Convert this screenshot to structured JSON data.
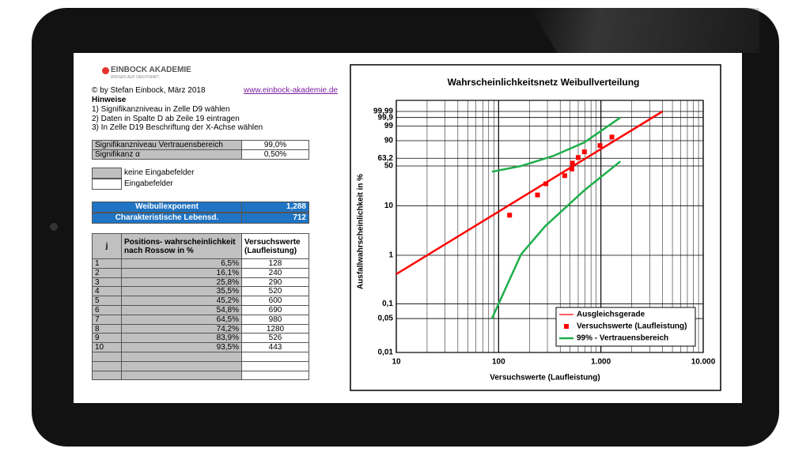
{
  "logo": {
    "name": "EINBOCK AKADEMIE",
    "tagline": "WISSEN AUF DEN PUNKT."
  },
  "author": "© by Stefan Einbock, März 2018",
  "link": "www.einbock-akademie.de",
  "notes": {
    "title": "Hinweise",
    "items": [
      "1) Signifikanzniveau in Zelle D9 wählen",
      "2) Daten in Spalte D ab Zeile 19 eintragen",
      "3) In Zelle D19 Beschriftung der X-Achse wählen"
    ]
  },
  "params": [
    [
      "Signifikanzniveau Vertrauensbereich",
      "99,0%"
    ],
    [
      "Signifikanz α",
      "0,50%"
    ]
  ],
  "key": [
    "keine Eingabefelder",
    "Eingabefelder"
  ],
  "results": [
    [
      "Weibullexponent",
      "1,288"
    ],
    [
      "Charakteristische Lebensd.",
      "712"
    ]
  ],
  "table": {
    "header": [
      "j",
      "Positions- wahrscheinlichkeit nach Rossow in %",
      "Versuchswerte (Laufleistung)"
    ],
    "rows": [
      [
        "1",
        "6,5%",
        "128"
      ],
      [
        "2",
        "16,1%",
        "240"
      ],
      [
        "3",
        "25,8%",
        "290"
      ],
      [
        "4",
        "35,5%",
        "520"
      ],
      [
        "5",
        "45,2%",
        "600"
      ],
      [
        "6",
        "54,8%",
        "690"
      ],
      [
        "7",
        "64,5%",
        "980"
      ],
      [
        "8",
        "74,2%",
        "1280"
      ],
      [
        "9",
        "83,9%",
        "526"
      ],
      [
        "10",
        "93,5%",
        "443"
      ]
    ]
  },
  "chart_data": {
    "type": "scatter",
    "title": "Wahrscheinlichkeitsnetz Weibullverteilung",
    "x_label": "Versuchswerte (Laufleistung)",
    "y_label": "Ausfallwahrscheinlichkeit in %",
    "x_scale": "log",
    "y_scale": "weibull",
    "xlim": [
      10,
      10000
    ],
    "ylim": [
      0.01,
      99.99
    ],
    "xticks": [
      10,
      100,
      {
        "value": 1000,
        "label": "1.000"
      },
      {
        "value": 10000,
        "label": "10.000"
      }
    ],
    "yticks": [
      {
        "value": 0.01,
        "label": "0,01"
      },
      {
        "value": 0.05,
        "label": "0,05"
      },
      {
        "value": 0.1,
        "label": "0,1"
      },
      1,
      10,
      50,
      {
        "value": 63.2,
        "label": "63,2"
      },
      90,
      99,
      {
        "value": 99.9,
        "label": "99,9"
      },
      {
        "value": 99.99,
        "label": "99,99"
      }
    ],
    "grid": true,
    "legend": "lower right",
    "series": [
      {
        "name": "Ausgleichsgerade",
        "style": "line",
        "color": "#ff0000",
        "x": [
          10,
          4000
        ],
        "values": [
          0.41,
          99.99
        ]
      },
      {
        "name": "Versuchswerte (Laufleistung)",
        "style": "markers",
        "color": "#ff0000",
        "x": [
          128,
          240,
          290,
          443,
          520,
          526,
          600,
          690,
          980,
          1280
        ],
        "values": [
          6.5,
          16.1,
          25.8,
          35.5,
          45.2,
          54.8,
          64.5,
          74.2,
          83.9,
          93.5
        ]
      },
      {
        "name": "99% - Vertrauensbereich",
        "style": "line",
        "color": "#1fae4a",
        "x": [
          86,
          166,
          340,
          690,
          1550,
          null,
          86,
          166,
          285,
          690,
          1550
        ],
        "values": [
          41,
          50,
          67,
          88,
          99.9,
          null,
          0.05,
          1.05,
          3.9,
          19.7,
          57.8
        ]
      }
    ]
  }
}
